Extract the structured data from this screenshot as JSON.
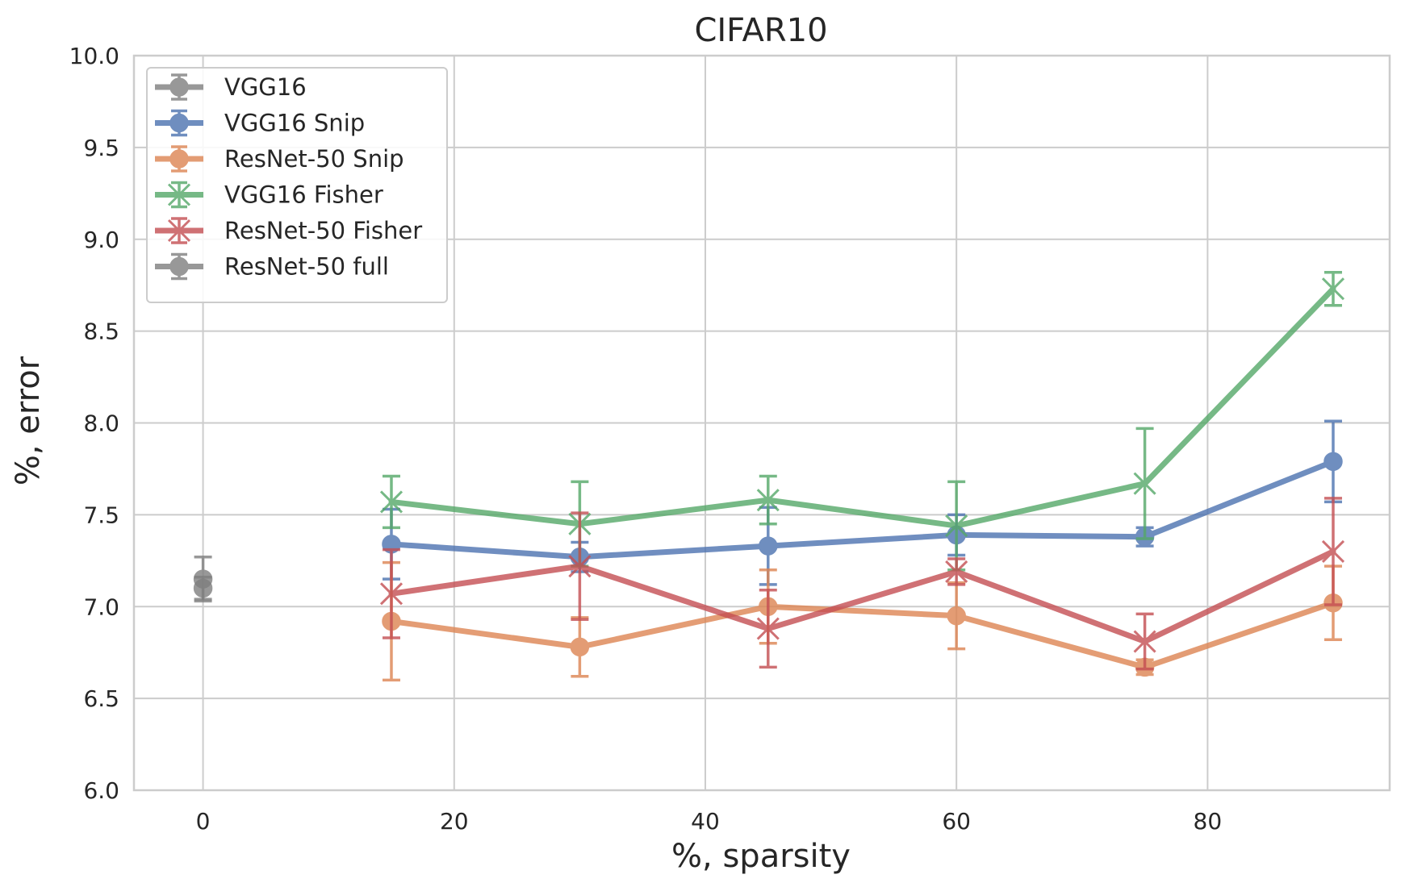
{
  "chart_data": {
    "type": "line",
    "title": "CIFAR10",
    "xlabel": "%, sparsity",
    "ylabel": "%, error",
    "xlim": [
      -5.5,
      94.5
    ],
    "ylim": [
      6.0,
      10.0
    ],
    "xticks": [
      "0",
      "20",
      "40",
      "60",
      "80"
    ],
    "yticks": [
      "6.0",
      "6.5",
      "7.0",
      "7.5",
      "8.0",
      "8.5",
      "9.0",
      "9.5",
      "10.0"
    ],
    "grid": true,
    "legend_position": "top-left",
    "series": [
      {
        "name": "VGG16",
        "color": "#7f7f7f",
        "marker": "circle",
        "x": [
          0
        ],
        "y": [
          7.15
        ],
        "err": [
          0.12
        ]
      },
      {
        "name": "VGG16 Snip",
        "color": "#4c72b0",
        "marker": "circle",
        "x": [
          15,
          30,
          45,
          60,
          75,
          90
        ],
        "y": [
          7.34,
          7.27,
          7.33,
          7.39,
          7.38,
          7.79
        ],
        "err": [
          0.19,
          0.08,
          0.21,
          0.11,
          0.05,
          0.22
        ]
      },
      {
        "name": "ResNet-50 Snip",
        "color": "#dd8452",
        "marker": "circle",
        "x": [
          15,
          30,
          45,
          60,
          75,
          90
        ],
        "y": [
          6.92,
          6.78,
          7.0,
          6.95,
          6.67,
          7.02
        ],
        "err": [
          0.32,
          0.16,
          0.2,
          0.18,
          0.04,
          0.2
        ]
      },
      {
        "name": "VGG16 Fisher",
        "color": "#55a868",
        "marker": "x",
        "x": [
          15,
          30,
          45,
          60,
          75,
          90
        ],
        "y": [
          7.57,
          7.45,
          7.58,
          7.44,
          7.67,
          8.73
        ],
        "err": [
          0.14,
          0.23,
          0.13,
          0.24,
          0.3,
          0.09
        ]
      },
      {
        "name": "ResNet-50 Fisher",
        "color": "#c44e52",
        "marker": "x",
        "x": [
          15,
          30,
          45,
          60,
          75,
          90
        ],
        "y": [
          7.07,
          7.22,
          6.88,
          7.19,
          6.81,
          7.3
        ],
        "err": [
          0.24,
          0.29,
          0.21,
          0.07,
          0.15,
          0.29
        ]
      },
      {
        "name": "ResNet-50 full",
        "color": "#7f7f7f",
        "marker": "circle",
        "x": [
          0
        ],
        "y": [
          7.1
        ],
        "err": [
          0.06
        ]
      }
    ]
  }
}
